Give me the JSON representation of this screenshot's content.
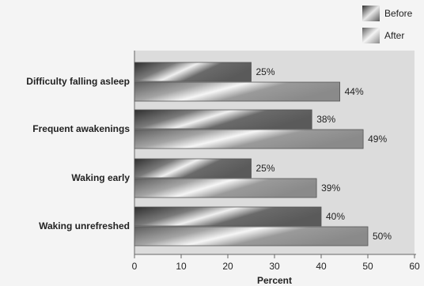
{
  "chart_data": {
    "type": "bar",
    "orientation": "horizontal",
    "categories": [
      "Difficulty falling asleep",
      "Frequent awakenings",
      "Waking early",
      "Waking unrefreshed"
    ],
    "series": [
      {
        "name": "Before",
        "values": [
          25,
          38,
          25,
          40
        ],
        "labels": [
          "25%",
          "38%",
          "25%",
          "40%"
        ]
      },
      {
        "name": "After",
        "values": [
          44,
          49,
          39,
          50
        ],
        "labels": [
          "44%",
          "49%",
          "39%",
          "50%"
        ]
      }
    ],
    "xlabel": "Percent",
    "ylabel": "",
    "xlim": [
      0,
      60
    ],
    "xticks": [
      0,
      10,
      20,
      30,
      40,
      50,
      60
    ],
    "grid": false,
    "legend_position": "top-right",
    "colors": {
      "plot_background": "#dcdcdc",
      "page_background": "#f4f4f4",
      "before_dark": "#3c3c3c",
      "before_light": "#e6e6e6",
      "after_dark": "#6e6e6e",
      "after_light": "#f2f2f2"
    }
  }
}
